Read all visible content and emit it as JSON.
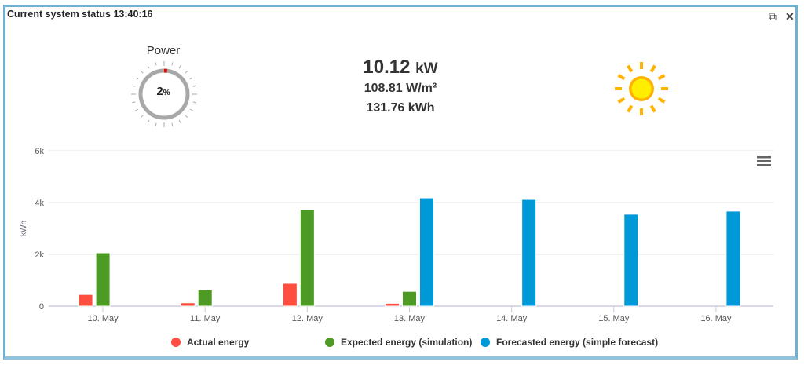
{
  "header": {
    "title": "Current system status 13:40:16",
    "restore_icon": "restore-window-icon",
    "close_icon": "close-icon",
    "restore_glyph": "⧉",
    "close_glyph": "✕"
  },
  "power": {
    "label": "Power",
    "percent": 2,
    "percent_text": "2",
    "unit": "%"
  },
  "stats": {
    "power_value": "10.12",
    "power_unit": "kW",
    "irradiance": "108.81 W/m²",
    "energy": "131.76 kWh"
  },
  "weather": {
    "icon": "sun-icon"
  },
  "chart_menu": {
    "icon": "hamburger-menu-icon"
  },
  "colors": {
    "actual": "#ff4d3f",
    "expected": "#4d9a24",
    "forecast": "#0099d8"
  },
  "chart_data": {
    "type": "bar",
    "categories": [
      "10. May",
      "11. May",
      "12. May",
      "13. May",
      "14. May",
      "15. May",
      "16. May"
    ],
    "ylabel": "kWh",
    "ylim": [
      0,
      6000
    ],
    "yticks": [
      {
        "v": 0,
        "label": "0"
      },
      {
        "v": 2000,
        "label": "2k"
      },
      {
        "v": 4000,
        "label": "4k"
      },
      {
        "v": 6000,
        "label": "6k"
      }
    ],
    "grid": true,
    "legend_position": "bottom",
    "series": [
      {
        "name": "Actual energy",
        "color": "#ff4d3f",
        "values": [
          450,
          130,
          880,
          110,
          null,
          null,
          null
        ]
      },
      {
        "name": "Expected energy (simulation)",
        "color": "#4d9a24",
        "values": [
          2060,
          630,
          3730,
          570,
          null,
          null,
          null
        ]
      },
      {
        "name": "Forecasted energy (simple forecast)",
        "color": "#0099d8",
        "values": [
          null,
          null,
          null,
          4180,
          4120,
          3550,
          3670
        ]
      }
    ]
  }
}
